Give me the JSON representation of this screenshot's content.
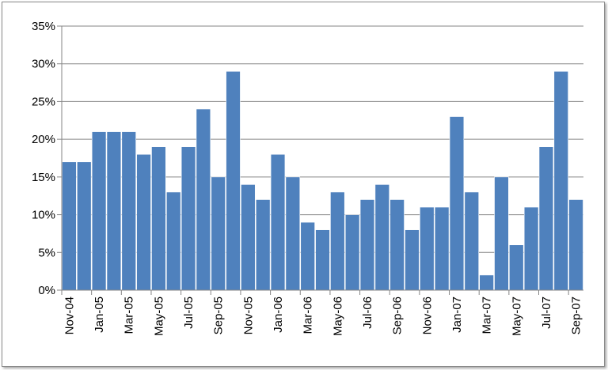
{
  "chart_data": {
    "type": "bar",
    "title": "",
    "xlabel": "",
    "ylabel": "",
    "ylim": [
      0,
      35
    ],
    "yticks": [
      "0%",
      "5%",
      "10%",
      "15%",
      "20%",
      "25%",
      "30%",
      "35%"
    ],
    "grid": true,
    "legend": "none",
    "bar_color": "#4f81bd",
    "categories": [
      "Nov-04",
      "Dec-04",
      "Jan-05",
      "Feb-05",
      "Mar-05",
      "Apr-05",
      "May-05",
      "Jun-05",
      "Jul-05",
      "Aug-05",
      "Sep-05",
      "Oct-05",
      "Nov-05",
      "Dec-05",
      "Jan-06",
      "Feb-06",
      "Mar-06",
      "Apr-06",
      "May-06",
      "Jun-06",
      "Jul-06",
      "Aug-06",
      "Sep-06",
      "Oct-06",
      "Nov-06",
      "Dec-06",
      "Jan-07",
      "Feb-07",
      "Mar-07",
      "Apr-07",
      "May-07",
      "Jun-07",
      "Jul-07",
      "Aug-07",
      "Sep-07"
    ],
    "shown_category_labels": [
      "Nov-04",
      "Jan-05",
      "Mar-05",
      "May-05",
      "Jul-05",
      "Sep-05",
      "Nov-05",
      "Jan-06",
      "Mar-06",
      "May-06",
      "Jul-06",
      "Sep-06",
      "Nov-06",
      "Jan-07",
      "Mar-07",
      "May-07",
      "Jul-07",
      "Sep-07"
    ],
    "values": [
      17,
      17,
      21,
      21,
      21,
      18,
      19,
      13,
      19,
      24,
      15,
      29,
      14,
      12,
      18,
      15,
      9,
      8,
      13,
      10,
      12,
      14,
      12,
      8,
      11,
      11,
      23,
      13,
      2,
      15,
      6,
      11,
      19,
      29,
      12
    ]
  }
}
